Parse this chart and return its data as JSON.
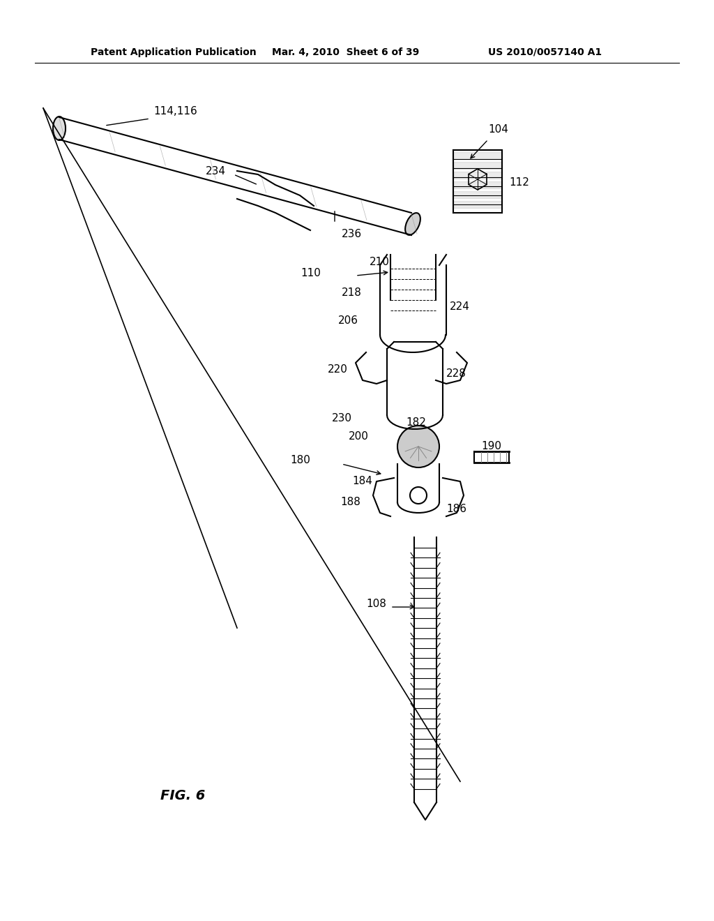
{
  "bg_color": "#ffffff",
  "line_color": "#000000",
  "header_left": "Patent Application Publication",
  "header_mid": "Mar. 4, 2010  Sheet 6 of 39",
  "header_right": "US 2010/0057140 A1",
  "fig_label": "FIG. 6",
  "labels": {
    "114_116": "114,116",
    "234": "234",
    "236": "236",
    "104": "104",
    "112": "112",
    "110": "110",
    "210": "210",
    "218": "218",
    "224": "224",
    "206": "206",
    "220": "220",
    "228": "228",
    "230": "230",
    "200": "200",
    "182": "182",
    "190": "190",
    "180": "180",
    "184": "184",
    "188": "188",
    "186": "186",
    "108": "108"
  }
}
